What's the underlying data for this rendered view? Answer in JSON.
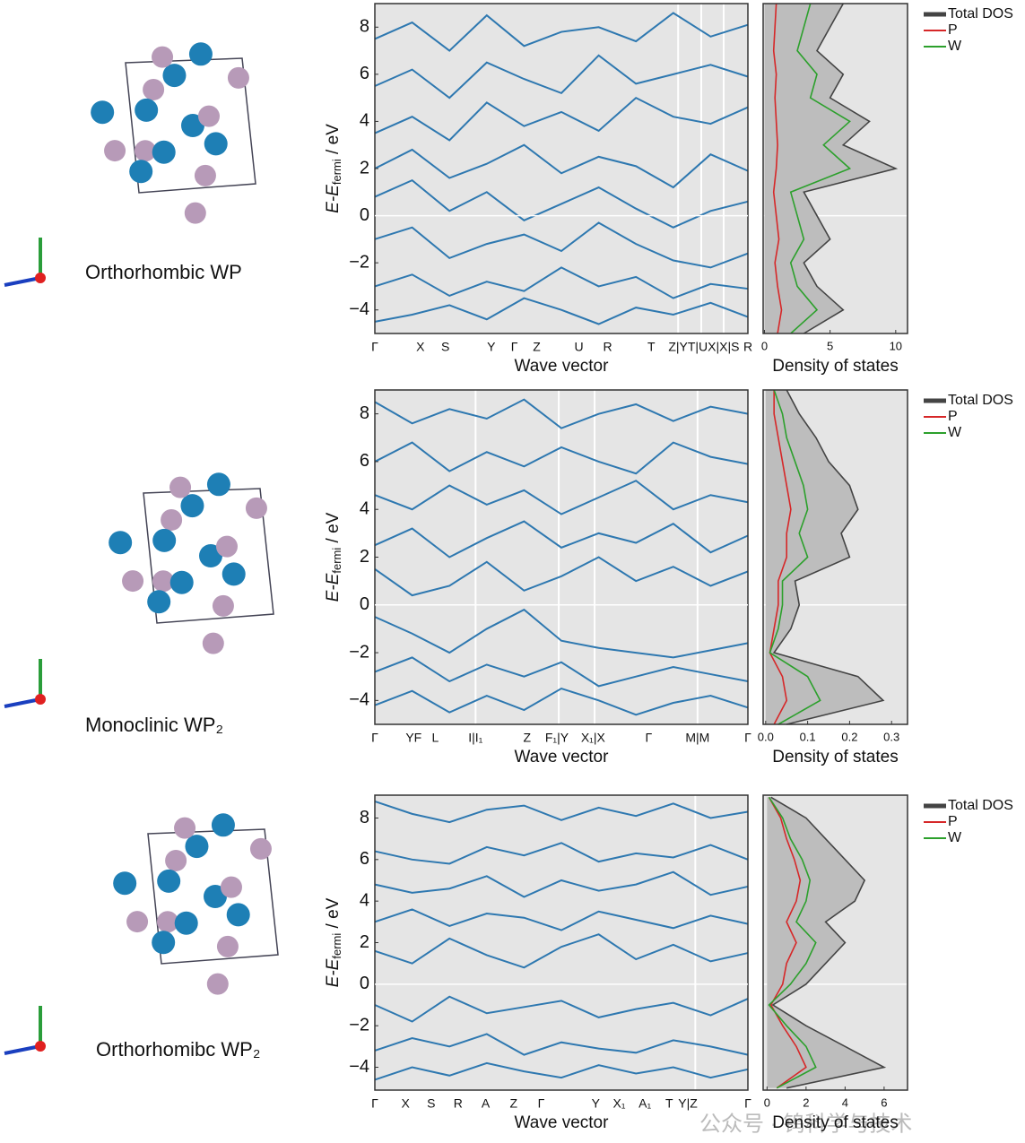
{
  "chart_data": [
    {
      "type": "band_dos",
      "structure": "Orthorhombic WP",
      "ylabel_main": "E-E",
      "ylabel_sub": "fermi",
      "ylabel_unit": " / eV",
      "xlabel": "Wave vector",
      "dos_xlabel": "Density of states",
      "ylim": [
        -5,
        9
      ],
      "yticks": [
        {
          "value": -4,
          "label": "−4"
        },
        {
          "value": -2,
          "label": "−2"
        },
        0,
        2,
        4,
        6,
        8
      ],
      "kpoints": [
        "Γ",
        "X",
        "S",
        "Y",
        "Γ",
        "Z",
        "U",
        "R",
        "T",
        "Z|YT|UX|X|S",
        "R"
      ],
      "kpoint_x": [
        0,
        0.122,
        0.189,
        0.312,
        0.374,
        0.434,
        0.547,
        0.624,
        0.741,
        0.882,
        1.0
      ],
      "separators": [
        0.813,
        0.875,
        0.935
      ],
      "band_x": [
        0,
        0.1,
        0.2,
        0.3,
        0.4,
        0.5,
        0.6,
        0.7,
        0.8,
        0.9,
        1.0
      ],
      "band_color": "#2e78b0",
      "bands": [
        [
          -4.5,
          -4.2,
          -3.8,
          -4.4,
          -3.5,
          -4.0,
          -4.6,
          -3.9,
          -4.2,
          -3.7,
          -4.3
        ],
        [
          -3.0,
          -2.5,
          -3.4,
          -2.8,
          -3.2,
          -2.2,
          -3.0,
          -2.6,
          -3.5,
          -2.9,
          -3.1
        ],
        [
          -1.0,
          -0.5,
          -1.8,
          -1.2,
          -0.8,
          -1.5,
          -0.3,
          -1.2,
          -1.9,
          -2.2,
          -1.6
        ],
        [
          0.8,
          1.5,
          0.2,
          1.0,
          -0.2,
          0.5,
          1.2,
          0.3,
          -0.5,
          0.2,
          0.6
        ],
        [
          2.0,
          2.8,
          1.6,
          2.2,
          3.0,
          1.8,
          2.5,
          2.1,
          1.2,
          2.6,
          1.9
        ],
        [
          3.5,
          4.2,
          3.2,
          4.8,
          3.8,
          4.4,
          3.6,
          5.0,
          4.2,
          3.9,
          4.6
        ],
        [
          5.5,
          6.2,
          5.0,
          6.5,
          5.8,
          5.2,
          6.8,
          5.6,
          6.0,
          6.4,
          5.9
        ],
        [
          7.5,
          8.2,
          7.0,
          8.5,
          7.2,
          7.8,
          8.0,
          7.4,
          8.6,
          7.6,
          8.1
        ]
      ],
      "dos_energy": [
        -5,
        -4,
        -3,
        -2,
        -1,
        0,
        1,
        2,
        3,
        4,
        5,
        6,
        7,
        8,
        9
      ],
      "dos_xlim": [
        -0.1,
        10.9
      ],
      "dos_xticks": [
        0,
        5,
        10
      ],
      "series": [
        {
          "name": "Total DOS",
          "color": "#444444",
          "values": [
            3,
            6,
            4,
            3,
            5,
            4,
            3,
            10,
            6,
            8,
            5,
            6,
            4,
            5,
            6
          ]
        },
        {
          "name": "P",
          "color": "#d62728",
          "values": [
            1,
            1.3,
            1,
            0.8,
            1.1,
            0.9,
            0.7,
            0.9,
            1,
            0.9,
            0.8,
            0.9,
            0.7,
            0.8,
            0.9
          ]
        },
        {
          "name": "W",
          "color": "#2ca02c",
          "values": [
            2,
            4,
            2.5,
            2,
            3,
            2.5,
            2,
            6.5,
            4.5,
            6.5,
            3.5,
            4,
            2.5,
            3,
            3.5
          ]
        }
      ]
    },
    {
      "type": "band_dos",
      "structure": "Monoclinic WP₂",
      "ylabel_main": "E-E",
      "ylabel_sub": "fermi",
      "ylabel_unit": " / eV",
      "xlabel": "Wave vector",
      "dos_xlabel": "Density of states",
      "ylim": [
        -5,
        9
      ],
      "yticks": [
        {
          "value": -4,
          "label": "−4"
        },
        {
          "value": -2,
          "label": "−2"
        },
        0,
        2,
        4,
        6,
        8
      ],
      "kpoints": [
        "Γ",
        "YF",
        "L",
        "I|I₁",
        "Z",
        "F₁|Y",
        "X₁|X",
        "Γ",
        "M|M",
        "Γ"
      ],
      "kpoint_x": [
        0,
        0.104,
        0.162,
        0.27,
        0.408,
        0.488,
        0.585,
        0.734,
        0.865,
        1.0
      ],
      "separators": [
        0.27,
        0.493,
        0.589,
        0.865
      ],
      "band_x": [
        0,
        0.1,
        0.2,
        0.3,
        0.4,
        0.5,
        0.6,
        0.7,
        0.8,
        0.9,
        1.0
      ],
      "band_color": "#2e78b0",
      "bands": [
        [
          -4.2,
          -3.6,
          -4.5,
          -3.8,
          -4.4,
          -3.5,
          -4.0,
          -4.6,
          -4.1,
          -3.8,
          -4.3
        ],
        [
          -2.8,
          -2.2,
          -3.2,
          -2.5,
          -3.0,
          -2.4,
          -3.4,
          -3.0,
          -2.6,
          -2.9,
          -3.2
        ],
        [
          -0.5,
          -1.2,
          -2.0,
          -1.0,
          -0.2,
          -1.5,
          -1.8,
          -2.0,
          -2.2,
          -1.9,
          -1.6
        ],
        [
          1.5,
          0.4,
          0.8,
          1.8,
          0.6,
          1.2,
          2.0,
          1.0,
          1.6,
          0.8,
          1.4
        ],
        [
          2.5,
          3.2,
          2.0,
          2.8,
          3.5,
          2.4,
          3.0,
          2.6,
          3.4,
          2.2,
          2.9
        ],
        [
          4.6,
          4.0,
          5.0,
          4.2,
          4.8,
          3.8,
          4.5,
          5.2,
          4.0,
          4.6,
          4.3
        ],
        [
          6.0,
          6.8,
          5.6,
          6.4,
          5.8,
          6.6,
          6.0,
          5.5,
          6.8,
          6.2,
          5.9
        ],
        [
          8.5,
          7.6,
          8.2,
          7.8,
          8.6,
          7.4,
          8.0,
          8.4,
          7.7,
          8.3,
          8.0
        ]
      ],
      "dos_energy": [
        -5,
        -4,
        -3,
        -2,
        -1,
        0,
        1,
        2,
        3,
        4,
        5,
        6,
        7,
        8,
        9
      ],
      "dos_xlim": [
        -0.006,
        0.338
      ],
      "dos_xticks": [
        {
          "value": 0,
          "label": "0.0"
        },
        0.1,
        0.2,
        0.3
      ],
      "series": [
        {
          "name": "Total DOS",
          "color": "#444444",
          "values": [
            0.05,
            0.28,
            0.22,
            0.02,
            0.06,
            0.08,
            0.07,
            0.2,
            0.18,
            0.22,
            0.2,
            0.15,
            0.12,
            0.08,
            0.05
          ]
        },
        {
          "name": "P",
          "color": "#d62728",
          "values": [
            0.02,
            0.05,
            0.04,
            0.01,
            0.02,
            0.03,
            0.03,
            0.05,
            0.05,
            0.06,
            0.05,
            0.04,
            0.03,
            0.02,
            0.02
          ]
        },
        {
          "name": "W",
          "color": "#2ca02c",
          "values": [
            0.03,
            0.13,
            0.1,
            0.01,
            0.03,
            0.04,
            0.04,
            0.1,
            0.08,
            0.1,
            0.09,
            0.07,
            0.05,
            0.04,
            0.02
          ]
        }
      ]
    },
    {
      "type": "band_dos",
      "structure": "Orthorhomibc WP₂",
      "ylabel_main": "E-E",
      "ylabel_sub": "fermi",
      "ylabel_unit": " / eV",
      "xlabel": "Wave vector",
      "dos_xlabel": "Density of states",
      "ylim": [
        -5.1,
        9.1
      ],
      "yticks": [
        {
          "value": -4,
          "label": "−4"
        },
        {
          "value": -2,
          "label": "−2"
        },
        0,
        2,
        4,
        6,
        8
      ],
      "kpoints": [
        "Γ",
        "X",
        "S",
        "R",
        "A",
        "Z",
        "Γ",
        "Y",
        "X₁",
        "A₁",
        "T",
        "Y|Z",
        "Γ"
      ],
      "kpoint_x": [
        0,
        0.082,
        0.151,
        0.223,
        0.297,
        0.372,
        0.446,
        0.592,
        0.655,
        0.724,
        0.789,
        0.839,
        1.0
      ],
      "separators": [
        0.859
      ],
      "band_x": [
        0,
        0.1,
        0.2,
        0.3,
        0.4,
        0.5,
        0.6,
        0.7,
        0.8,
        0.9,
        1.0
      ],
      "band_color": "#2e78b0",
      "bands": [
        [
          -4.6,
          -4.0,
          -4.4,
          -3.8,
          -4.2,
          -4.5,
          -3.9,
          -4.3,
          -4.0,
          -4.5,
          -4.1
        ],
        [
          -3.2,
          -2.6,
          -3.0,
          -2.4,
          -3.4,
          -2.8,
          -3.1,
          -3.3,
          -2.7,
          -3.0,
          -3.4
        ],
        [
          -1.0,
          -1.8,
          -0.6,
          -1.4,
          -1.1,
          -0.8,
          -1.6,
          -1.2,
          -0.9,
          -1.5,
          -0.7
        ],
        [
          1.6,
          1.0,
          2.2,
          1.4,
          0.8,
          1.8,
          2.4,
          1.2,
          1.9,
          1.1,
          1.5
        ],
        [
          3.0,
          3.6,
          2.8,
          3.4,
          3.2,
          2.6,
          3.5,
          3.1,
          2.7,
          3.3,
          2.9
        ],
        [
          4.8,
          4.4,
          4.6,
          5.2,
          4.2,
          5.0,
          4.5,
          4.8,
          5.4,
          4.3,
          4.7
        ],
        [
          6.4,
          6.0,
          5.8,
          6.6,
          6.2,
          6.8,
          5.9,
          6.3,
          6.1,
          6.7,
          6.0
        ],
        [
          8.8,
          8.2,
          7.8,
          8.4,
          8.6,
          7.9,
          8.5,
          8.1,
          8.7,
          8.0,
          8.3
        ]
      ],
      "dos_energy": [
        -5,
        -4,
        -3,
        -2,
        -1,
        0,
        1,
        2,
        3,
        4,
        5,
        6,
        7,
        8,
        9
      ],
      "dos_xlim": [
        -0.2,
        7.2
      ],
      "dos_xticks": [
        0,
        2,
        4,
        6
      ],
      "series": [
        {
          "name": "Total DOS",
          "color": "#444444",
          "values": [
            1,
            6,
            4,
            2,
            0.3,
            2,
            3,
            4,
            3,
            4.5,
            5,
            4,
            3,
            2,
            0.2
          ]
        },
        {
          "name": "P",
          "color": "#d62728",
          "values": [
            0.5,
            2,
            1.5,
            0.8,
            0.2,
            0.8,
            1,
            1.5,
            1,
            1.5,
            1.7,
            1.4,
            1,
            0.7,
            0.1
          ]
        },
        {
          "name": "W",
          "color": "#2ca02c",
          "values": [
            0.5,
            2.5,
            2,
            1,
            0.1,
            1.2,
            2,
            2.5,
            1.5,
            2,
            2.2,
            1.8,
            1.2,
            0.8,
            0.1
          ]
        }
      ]
    }
  ],
  "watermark": "公众号 · 钨科学与技术"
}
